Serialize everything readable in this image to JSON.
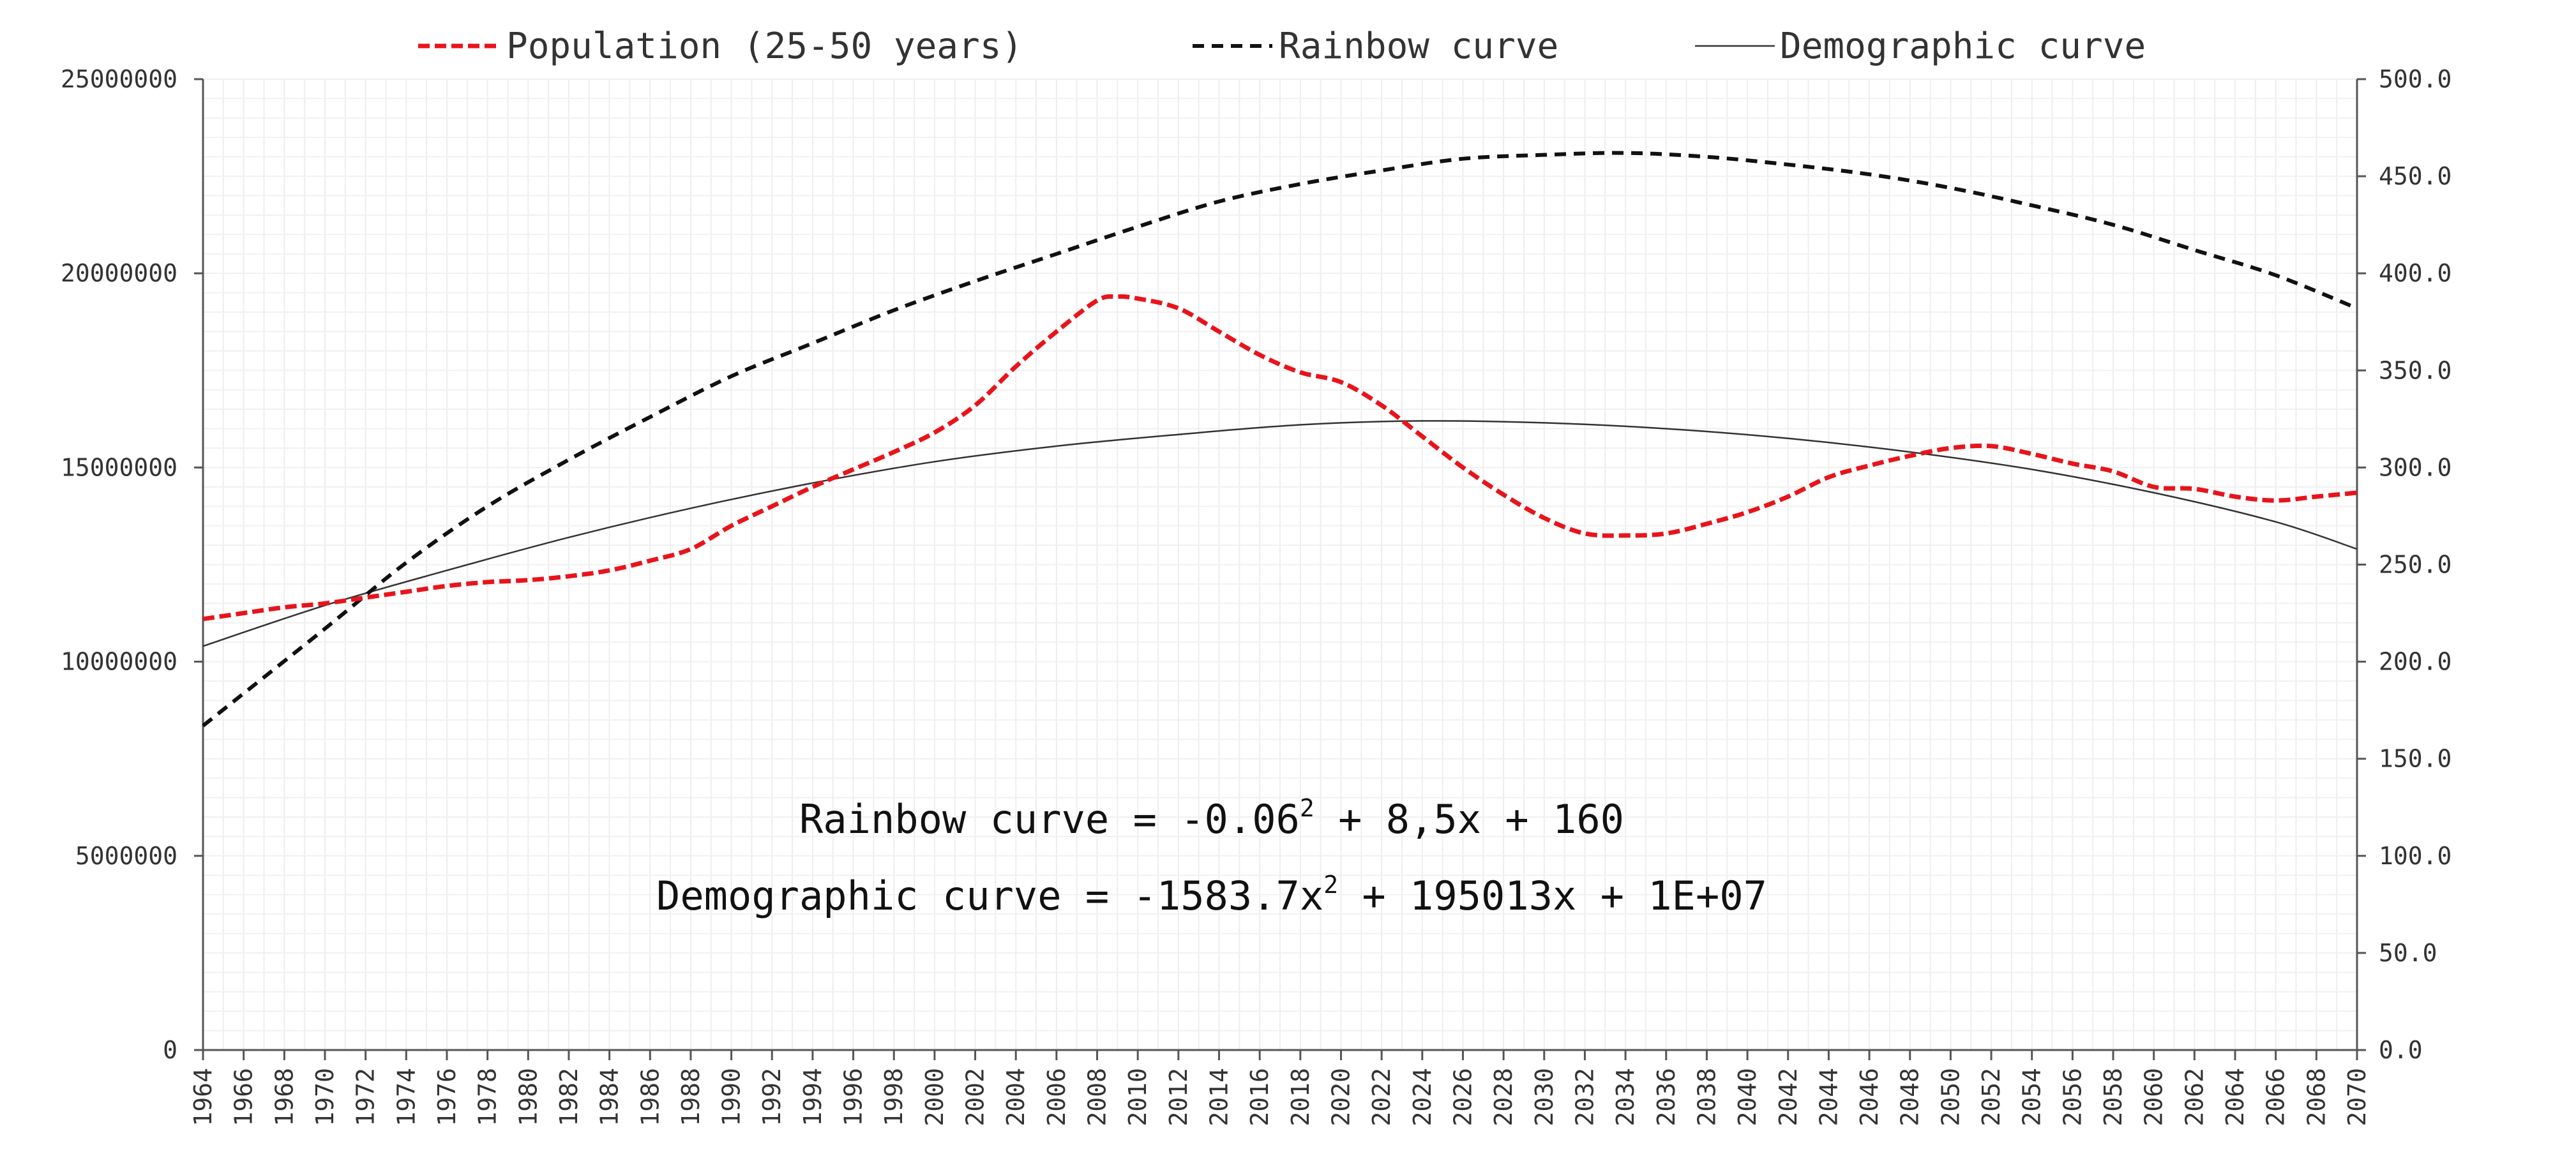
{
  "chart_data": {
    "type": "line",
    "title": "",
    "xlabel": "",
    "ylabel": "",
    "legend_position": "top",
    "grid": true,
    "x_range": [
      1964,
      2070
    ],
    "x_tick_labels": [
      "1964",
      "1966",
      "1968",
      "1970",
      "1972",
      "1974",
      "1976",
      "1978",
      "1980",
      "1982",
      "1984",
      "1986",
      "1988",
      "1990",
      "1992",
      "1994",
      "1996",
      "1998",
      "2000",
      "2002",
      "2004",
      "2006",
      "2008",
      "2010",
      "2012",
      "2014",
      "2016",
      "2018",
      "2020",
      "2022",
      "2024",
      "2026",
      "2028",
      "2030",
      "2032",
      "2034",
      "2036",
      "2038",
      "2040",
      "2042",
      "2044",
      "2046",
      "2048",
      "2050",
      "2052",
      "2054",
      "2056",
      "2058",
      "2060",
      "2062",
      "2064",
      "2066",
      "2068",
      "2070"
    ],
    "y_left": {
      "range": [
        0,
        25000000
      ],
      "tick_labels": [
        "0",
        "5000000",
        "10000000",
        "15000000",
        "20000000",
        "25000000"
      ]
    },
    "y_right": {
      "range": [
        0,
        500
      ],
      "tick_labels": [
        "0.0",
        "50.0",
        "100.0",
        "150.0",
        "200.0",
        "250.0",
        "300.0",
        "350.0",
        "400.0",
        "450.0",
        "500.0"
      ]
    },
    "series": [
      {
        "name": "Population (25-50 years)",
        "axis": "left",
        "style": "dashed",
        "color": "#e8141b",
        "x": [
          1964,
          1966,
          1968,
          1970,
          1972,
          1974,
          1976,
          1978,
          1980,
          1982,
          1984,
          1986,
          1988,
          1990,
          1992,
          1994,
          1996,
          1998,
          2000,
          2002,
          2004,
          2006,
          2008,
          2009,
          2010,
          2012,
          2014,
          2016,
          2018,
          2020,
          2022,
          2024,
          2026,
          2028,
          2030,
          2032,
          2034,
          2036,
          2038,
          2040,
          2042,
          2044,
          2046,
          2048,
          2050,
          2052,
          2054,
          2056,
          2058,
          2060,
          2062,
          2064,
          2066,
          2068,
          2070
        ],
        "values": [
          11100000,
          11250000,
          11400000,
          11500000,
          11650000,
          11800000,
          11950000,
          12050000,
          12100000,
          12200000,
          12350000,
          12600000,
          12900000,
          13500000,
          14000000,
          14500000,
          14950000,
          15400000,
          15900000,
          16600000,
          17600000,
          18500000,
          19300000,
          19400000,
          19350000,
          19100000,
          18500000,
          17900000,
          17450000,
          17200000,
          16600000,
          15800000,
          15000000,
          14300000,
          13700000,
          13300000,
          13250000,
          13300000,
          13550000,
          13850000,
          14250000,
          14750000,
          15050000,
          15300000,
          15500000,
          15550000,
          15350000,
          15100000,
          14900000,
          14500000,
          14450000,
          14250000,
          14150000,
          14250000,
          14350000
        ]
      },
      {
        "name": "Rainbow curve",
        "axis": "right",
        "style": "dashed",
        "color": "#111111",
        "x": [
          1964,
          1970,
          1974,
          1978,
          1982,
          1986,
          1990,
          1994,
          1998,
          2002,
          2006,
          2010,
          2014,
          2018,
          2022,
          2026,
          2030,
          2034,
          2038,
          2042,
          2046,
          2050,
          2054,
          2058,
          2062,
          2066,
          2070
        ],
        "values": [
          167,
          217,
          251,
          280,
          304,
          326,
          347,
          364,
          381,
          396,
          410,
          424,
          437,
          446,
          453,
          459,
          461,
          462,
          460,
          456,
          451,
          444,
          435,
          425,
          412,
          399,
          382
        ]
      },
      {
        "name": "Demographic curve",
        "axis": "left",
        "style": "solid",
        "color": "#333333",
        "x": [
          1964,
          1970,
          1976,
          1982,
          1988,
          1994,
          2000,
          2006,
          2012,
          2018,
          2024,
          2030,
          2036,
          2042,
          2048,
          2054,
          2060,
          2066,
          2070
        ],
        "values": [
          10400000,
          11450000,
          12350000,
          13200000,
          13950000,
          14600000,
          15150000,
          15550000,
          15850000,
          16100000,
          16200000,
          16150000,
          16000000,
          15750000,
          15400000,
          14950000,
          14350000,
          13600000,
          12900000
        ]
      }
    ],
    "annotations": [
      {
        "prefix": "Rainbow curve = -0.06",
        "sup": "2",
        "suffix": " + 8,5x + 160"
      },
      {
        "prefix": "Demographic curve = -1583.7x",
        "sup": "2",
        "suffix": " + 195013x + 1E+07"
      }
    ]
  }
}
